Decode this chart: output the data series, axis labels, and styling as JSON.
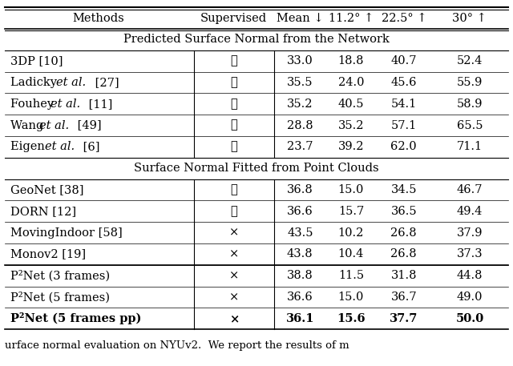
{
  "header": [
    "Methods",
    "Supervised",
    "Mean ↓",
    "11.2° ↑",
    "22.5° ↑",
    "30° ↑"
  ],
  "section1_title": "Predicted Surface Normal from the Network",
  "section2_title": "Surface Normal Fitted from Point Clouds",
  "section1_rows": [
    {
      "method": "3DP [10]",
      "supervised": true,
      "mean": "33.0",
      "d1": "18.8",
      "d2": "40.7",
      "d3": "52.4",
      "bold": false,
      "italic": false
    },
    {
      "method_parts": [
        [
          "Ladicky ",
          false
        ],
        [
          "et al.",
          true
        ],
        [
          " [27]",
          false
        ]
      ],
      "supervised": true,
      "mean": "35.5",
      "d1": "24.0",
      "d2": "45.6",
      "d3": "55.9",
      "bold": false,
      "italic": true
    },
    {
      "method_parts": [
        [
          "Fouhey ",
          false
        ],
        [
          "et al.",
          true
        ],
        [
          " [11]",
          false
        ]
      ],
      "supervised": true,
      "mean": "35.2",
      "d1": "40.5",
      "d2": "54.1",
      "d3": "58.9",
      "bold": false,
      "italic": true
    },
    {
      "method_parts": [
        [
          "Wang ",
          false
        ],
        [
          "et al.",
          true
        ],
        [
          " [49]",
          false
        ]
      ],
      "supervised": true,
      "mean": "28.8",
      "d1": "35.2",
      "d2": "57.1",
      "d3": "65.5",
      "bold": false,
      "italic": true
    },
    {
      "method_parts": [
        [
          "Eigen ",
          false
        ],
        [
          "et al.",
          true
        ],
        [
          " [6]",
          false
        ]
      ],
      "supervised": true,
      "mean": "23.7",
      "d1": "39.2",
      "d2": "62.0",
      "d3": "71.1",
      "bold": false,
      "italic": true
    }
  ],
  "section2_rows": [
    {
      "method": "GeoNet [38]",
      "supervised": true,
      "mean": "36.8",
      "d1": "15.0",
      "d2": "34.5",
      "d3": "46.7",
      "bold": false,
      "italic": false
    },
    {
      "method": "DORN [12]",
      "supervised": true,
      "mean": "36.6",
      "d1": "15.7",
      "d2": "36.5",
      "d3": "49.4",
      "bold": false,
      "italic": false
    },
    {
      "method": "MovingIndoor [58]",
      "supervised": false,
      "mean": "43.5",
      "d1": "10.2",
      "d2": "26.8",
      "d3": "37.9",
      "bold": false,
      "italic": false
    },
    {
      "method": "Monov2 [19]",
      "supervised": false,
      "mean": "43.8",
      "d1": "10.4",
      "d2": "26.8",
      "d3": "37.3",
      "bold": false,
      "italic": false
    }
  ],
  "our_rows": [
    {
      "method": "P²Net (3 frames)",
      "supervised": false,
      "mean": "38.8",
      "d1": "11.5",
      "d2": "31.8",
      "d3": "44.8",
      "bold": false
    },
    {
      "method": "P²Net (5 frames)",
      "supervised": false,
      "mean": "36.6",
      "d1": "15.0",
      "d2": "36.7",
      "d3": "49.0",
      "bold": false
    },
    {
      "method": "P²Net (5 frames pp)",
      "supervised": false,
      "mean": "36.1",
      "d1": "15.6",
      "d2": "37.7",
      "d3": "50.0",
      "bold": true
    }
  ],
  "bg_color": "#ffffff",
  "font_size": 10.5,
  "caption": "urface normal evaluation on NYUv2.  We report the results of m"
}
